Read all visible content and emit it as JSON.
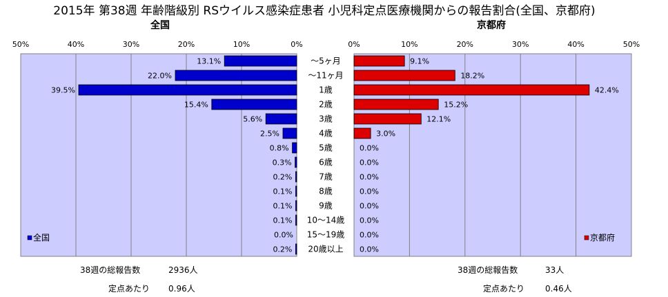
{
  "chart_data": {
    "type": "bar",
    "orientation": "horizontal-mirrored",
    "title": "2015年 第38週 年齢階級別 RSウイルス感染症患者 小児科定点医療機関からの報告割合(全国、京都府)",
    "categories": [
      "〜5ヶ月",
      "〜11ヶ月",
      "1歳",
      "2歳",
      "3歳",
      "4歳",
      "5歳",
      "6歳",
      "7歳",
      "8歳",
      "9歳",
      "10〜14歳",
      "15〜19歳",
      "20歳以上"
    ],
    "xlim": [
      0,
      50
    ],
    "x_ticks": [
      "50%",
      "40%",
      "30%",
      "20%",
      "10%",
      "0%",
      "0%",
      "10%",
      "20%",
      "30%",
      "40%",
      "50%"
    ],
    "grid": true,
    "panels": [
      {
        "name": "全国",
        "color": "#0000cc",
        "side": "left",
        "legend": "bottom-left",
        "values": [
          13.1,
          22.0,
          39.5,
          15.4,
          5.6,
          2.5,
          0.8,
          0.3,
          0.2,
          0.1,
          0.1,
          0.1,
          0.0,
          0.2
        ],
        "labels": [
          "13.1%",
          "22.0%",
          "39.5%",
          "15.4%",
          "5.6%",
          "2.5%",
          "0.8%",
          "0.3%",
          "0.2%",
          "0.1%",
          "0.1%",
          "0.1%",
          "0.0%",
          "0.2%"
        ]
      },
      {
        "name": "京都府",
        "color": "#dd0000",
        "side": "right",
        "legend": "bottom-right",
        "values": [
          9.1,
          18.2,
          42.4,
          15.2,
          12.1,
          3.0,
          0.0,
          0.0,
          0.0,
          0.0,
          0.0,
          0.0,
          0.0,
          0.0
        ],
        "labels": [
          "9.1%",
          "18.2%",
          "42.4%",
          "15.2%",
          "12.1%",
          "3.0%",
          "0.0%",
          "0.0%",
          "0.0%",
          "0.0%",
          "0.0%",
          "0.0%",
          "0.0%",
          "0.0%"
        ]
      }
    ]
  },
  "footer": {
    "national": {
      "total_label": "38週の総報告数",
      "total_value": "2936人",
      "per_label": "定点あたり",
      "per_value": "0.96人"
    },
    "kyoto": {
      "total_label": "38週の総報告数",
      "total_value": "33人",
      "per_label": "定点あたり",
      "per_value": "0.46人"
    }
  }
}
